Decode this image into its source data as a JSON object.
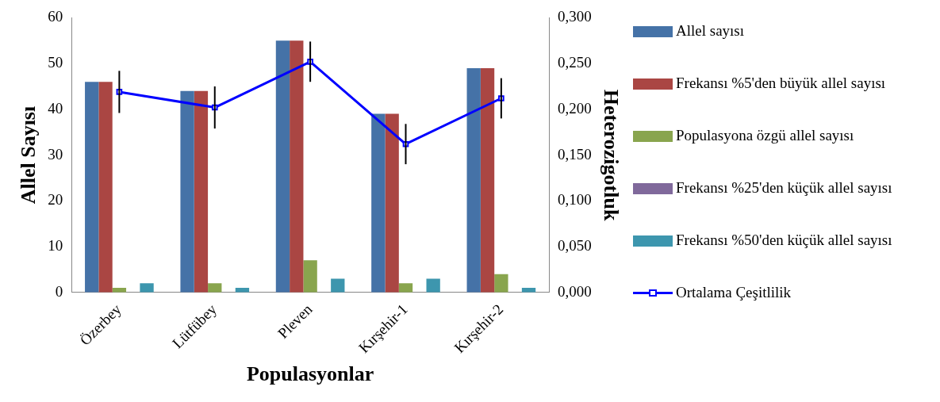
{
  "chart_data": {
    "type": "bar",
    "categories": [
      "Özerbey",
      "Lütfübey",
      "Pleven",
      "Kırşehir-1",
      "Kırşehir-2"
    ],
    "xlabel": "Populasyonlar",
    "ylabel": "Allel Sayısı",
    "y2label": "Heterozigotluk",
    "series": [
      {
        "name": "Allel sayısı",
        "color": "#4572a7",
        "values": [
          46,
          44,
          55,
          39,
          49
        ]
      },
      {
        "name": "Frekansı %5'den büyük allel sayısı",
        "color": "#aa4643",
        "values": [
          46,
          44,
          55,
          39,
          49
        ]
      },
      {
        "name": "Populasyona özgü allel sayısı",
        "color": "#89a54e",
        "values": [
          1,
          2,
          7,
          2,
          4
        ]
      },
      {
        "name": "Frekansı %25'den küçük allel sayısı",
        "color": "#80699b",
        "values": [
          0,
          0,
          0,
          0,
          0
        ]
      },
      {
        "name": "Frekansı %50'den küçük allel sayısı",
        "color": "#3d96ae",
        "values": [
          2,
          1,
          3,
          3,
          1
        ]
      },
      {
        "name": "Ortalama Çeşitlilik",
        "type": "line",
        "axis": "y2",
        "color": "#0000ff",
        "marker": "square",
        "values": [
          0.219,
          0.202,
          0.252,
          0.162,
          0.212
        ],
        "errors": [
          0.023,
          0.023,
          0.022,
          0.022,
          0.022
        ]
      }
    ],
    "ylim": [
      0,
      60
    ],
    "yticks": [
      0,
      10,
      20,
      30,
      40,
      50,
      60
    ],
    "y2lim": [
      0,
      0.3
    ],
    "y2ticks": [
      {
        "value": 0,
        "label": "0,000"
      },
      {
        "value": 0.05,
        "label": "0,050"
      },
      {
        "value": 0.1,
        "label": "0,100"
      },
      {
        "value": 0.15,
        "label": "0,150"
      },
      {
        "value": 0.2,
        "label": "0,200"
      },
      {
        "value": 0.25,
        "label": "0,250"
      },
      {
        "value": 0.3,
        "label": "0,300"
      }
    ],
    "grid": false,
    "legend": "right"
  }
}
